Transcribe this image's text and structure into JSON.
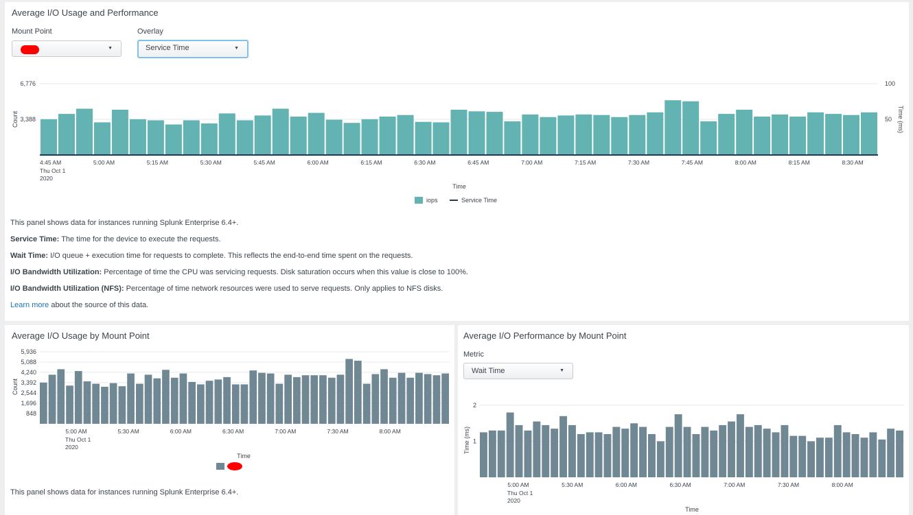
{
  "top_panel": {
    "title": "Average I/O Usage and Performance",
    "mount_point_label": "Mount Point",
    "overlay_label": "Overlay",
    "overlay_value": "Service Time",
    "descriptions": {
      "line1": "This panel shows data for instances running Splunk Enterprise 6.4+.",
      "service_time_term": "Service Time:",
      "service_time_text": " The time for the device to execute the requests.",
      "wait_time_term": "Wait Time:",
      "wait_time_text": " I/O queue + execution time for requests to complete. This reflects the end-to-end time spent on the requests.",
      "bw_term": "I/O Bandwidth Utilization:",
      "bw_text": " Percentage of time the CPU was servicing requests. Disk saturation occurs when this value is close to 100%.",
      "bw_nfs_term": "I/O Bandwidth Utilization (NFS):",
      "bw_nfs_text": " Percentage of time network resources were used to serve requests. Only applies to NFS disks.",
      "learn_more": "Learn more",
      "learn_more_suffix": " about the source of this data."
    }
  },
  "bottom_left_panel": {
    "title": "Average I/O Usage by Mount Point",
    "footer": "This panel shows data for instances running Splunk Enterprise 6.4+."
  },
  "bottom_right_panel": {
    "title": "Average I/O Performance by Mount Point",
    "metric_label": "Metric",
    "metric_value": "Wait Time"
  },
  "colors": {
    "iops_bar": "#62b3b2",
    "mount_bar": "#708794",
    "service_line": "#1e3b55",
    "redaction": "#ff0000"
  },
  "chart_data": [
    {
      "type": "bar",
      "chart_id": "top",
      "xlabel": "Time",
      "ylabel": "Count",
      "ylabel_right": "Time (ms)",
      "yticks": [
        "6,776",
        "3,388"
      ],
      "yticks_right": [
        "100",
        "50"
      ],
      "ylim": [
        0,
        6776
      ],
      "x_ticks": [
        "4:45 AM",
        "5:00 AM",
        "5:15 AM",
        "5:30 AM",
        "5:45 AM",
        "6:00 AM",
        "6:15 AM",
        "6:30 AM",
        "6:45 AM",
        "7:00 AM",
        "7:15 AM",
        "7:30 AM",
        "7:45 AM",
        "8:00 AM",
        "8:15 AM",
        "8:30 AM"
      ],
      "x_first_date": [
        "Thu Oct 1",
        "2020"
      ],
      "legend": [
        "iops",
        "Service Time"
      ],
      "values": [
        3400,
        3900,
        4400,
        3100,
        4300,
        3400,
        3300,
        2900,
        3300,
        3000,
        3950,
        3300,
        3750,
        4400,
        3650,
        4000,
        3350,
        3050,
        3400,
        3650,
        3800,
        3150,
        3100,
        4300,
        4150,
        4100,
        3200,
        3850,
        3600,
        3750,
        3850,
        3800,
        3600,
        3800,
        4050,
        5200,
        5100,
        3200,
        3900,
        4300,
        3650,
        3850,
        3650,
        4050,
        3900,
        3800,
        4050
      ]
    },
    {
      "type": "bar",
      "chart_id": "bottom-left",
      "xlabel": "Time",
      "ylabel": "Count",
      "yticks": [
        "5,936",
        "5,088",
        "4,240",
        "3,392",
        "2,544",
        "1,696",
        "848"
      ],
      "ylim": [
        0,
        5936
      ],
      "x_ticks": [
        "5:00 AM",
        "5:30 AM",
        "6:00 AM",
        "6:30 AM",
        "7:00 AM",
        "7:30 AM",
        "8:00 AM"
      ],
      "x_first_date": [
        "Thu Oct 1",
        "2020"
      ],
      "values": [
        3400,
        4050,
        4500,
        3150,
        4350,
        3500,
        3300,
        3050,
        3350,
        3100,
        4150,
        3300,
        4050,
        3750,
        4450,
        3800,
        4150,
        3450,
        3250,
        3550,
        3650,
        3850,
        3250,
        3250,
        4400,
        4200,
        4150,
        3300,
        4050,
        3850,
        4000,
        4000,
        4000,
        3800,
        4050,
        5350,
        5200,
        3300,
        4100,
        4500,
        3800,
        4200,
        3800,
        4200,
        4100,
        4000,
        4150
      ]
    },
    {
      "type": "bar",
      "chart_id": "bottom-right",
      "xlabel": "Time",
      "ylabel": "Time (ms)",
      "yticks": [
        "2",
        "1"
      ],
      "ylim": [
        0,
        2
      ],
      "x_ticks": [
        "5:00 AM",
        "5:30 AM",
        "6:00 AM",
        "6:30 AM",
        "7:00 AM",
        "7:30 AM",
        "8:00 AM"
      ],
      "x_first_date": [
        "Thu Oct 1",
        "2020"
      ],
      "values": [
        1.25,
        1.3,
        1.3,
        1.8,
        1.45,
        1.3,
        1.55,
        1.45,
        1.35,
        1.7,
        1.45,
        1.2,
        1.25,
        1.25,
        1.2,
        1.4,
        1.35,
        1.5,
        1.4,
        1.2,
        1.0,
        1.4,
        1.75,
        1.4,
        1.2,
        1.4,
        1.3,
        1.45,
        1.55,
        1.75,
        1.4,
        1.45,
        1.35,
        1.25,
        1.45,
        1.15,
        1.15,
        1.0,
        1.1,
        1.1,
        1.45,
        1.25,
        1.2,
        1.1,
        1.25,
        1.05,
        1.35,
        1.3
      ]
    }
  ]
}
